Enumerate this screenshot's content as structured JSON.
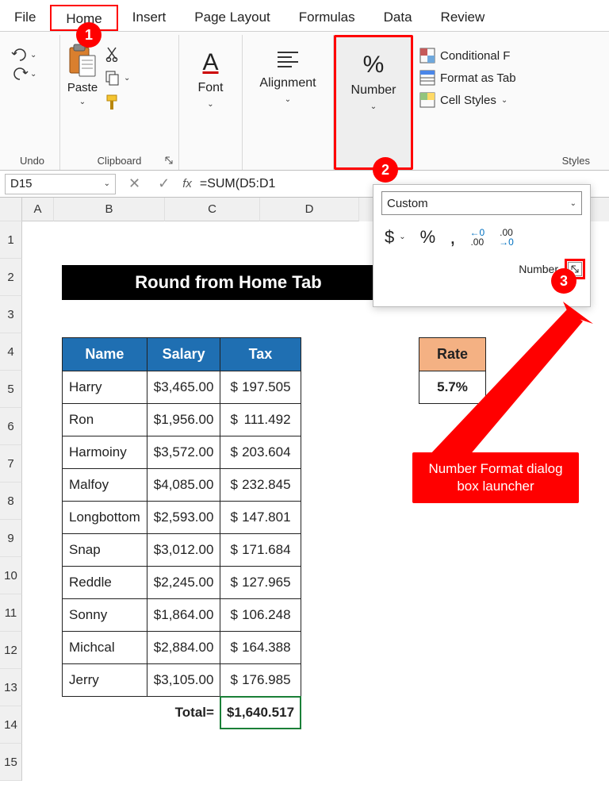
{
  "menu": {
    "tabs": [
      "File",
      "Home",
      "Insert",
      "Page Layout",
      "Formulas",
      "Data",
      "Review"
    ],
    "activeIndex": 1
  },
  "ribbon": {
    "undo": {
      "label": "Undo"
    },
    "clipboard": {
      "label": "Clipboard",
      "paste": "Paste"
    },
    "font": {
      "label": "Font"
    },
    "alignment": {
      "label": "Alignment"
    },
    "number": {
      "label": "Number"
    },
    "styles": {
      "label": "Styles",
      "conditional": "Conditional F",
      "formatTable": "Format as Tab",
      "cellStyles": "Cell Styles"
    }
  },
  "formulaBar": {
    "nameBox": "D15",
    "formula": "=SUM(D5:D1"
  },
  "columns": [
    "A",
    "B",
    "C",
    "D"
  ],
  "title": "Round from Home Tab",
  "table": {
    "headers": {
      "name": "Name",
      "salary": "Salary",
      "tax": "Tax"
    },
    "rows": [
      {
        "name": "Harry",
        "salary": "$3,465.00",
        "tax": "197.505"
      },
      {
        "name": "Ron",
        "salary": "$1,956.00",
        "tax": "111.492"
      },
      {
        "name": "Harmoiny",
        "salary": "$3,572.00",
        "tax": "203.604"
      },
      {
        "name": "Malfoy",
        "salary": "$4,085.00",
        "tax": "232.845"
      },
      {
        "name": "Longbottom",
        "salary": "$2,593.00",
        "tax": "147.801"
      },
      {
        "name": "Snap",
        "salary": "$3,012.00",
        "tax": "171.684"
      },
      {
        "name": "Reddle",
        "salary": "$2,245.00",
        "tax": "127.965"
      },
      {
        "name": "Sonny",
        "salary": "$1,864.00",
        "tax": "106.248"
      },
      {
        "name": "Michcal",
        "salary": "$2,884.00",
        "tax": "164.388"
      },
      {
        "name": "Jerry",
        "salary": "$3,105.00",
        "tax": "176.985"
      }
    ],
    "totalLabel": "Total=",
    "totalValue": "$1,640.517"
  },
  "rate": {
    "header": "Rate",
    "value": "5.7%"
  },
  "numberPanel": {
    "format": "Custom",
    "footer": "Number"
  },
  "callouts": {
    "b1": "1",
    "b2": "2",
    "b3": "3",
    "text": "Number Format dialog box launcher"
  },
  "colors": {
    "accentRed": "#ff0000",
    "headerBlue": "#1f6fb2",
    "rateOrange": "#f4b183",
    "excelGreen": "#217346",
    "selectGreen": "#1a7f37"
  }
}
